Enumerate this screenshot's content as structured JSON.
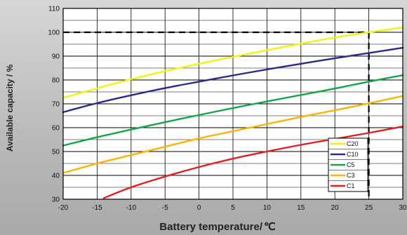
{
  "chart_data": {
    "type": "line",
    "xlabel": "Battery temperature/",
    "xlabel_unit": "℃",
    "ylabel": "Available capacity / %",
    "xlim": [
      -20,
      30
    ],
    "ylim": [
      30,
      110
    ],
    "x_ticks": [
      "-20",
      "-15",
      "-10",
      "-5",
      "0",
      "5",
      "10",
      "15",
      "20",
      "25",
      "30"
    ],
    "y_ticks": [
      "30",
      "40",
      "50",
      "60",
      "70",
      "80",
      "90",
      "100",
      "110"
    ],
    "grid": true,
    "legend_position": "bottom-right",
    "reference_lines": [
      {
        "axis": "y",
        "value": 100,
        "style": "dashed"
      },
      {
        "axis": "x",
        "value": 25,
        "style": "dashed"
      }
    ],
    "series": [
      {
        "name": "C20",
        "color": "#f2f20a",
        "x": [
          -20,
          -15,
          -10,
          -5,
          0,
          5,
          10,
          15,
          20,
          25,
          30
        ],
        "y": [
          72.5,
          76.5,
          80.3,
          83.7,
          86.8,
          89.7,
          92.5,
          95.2,
          97.8,
          100,
          102
        ]
      },
      {
        "name": "C10",
        "color": "#2a2a8c",
        "x": [
          -20,
          -15,
          -10,
          -5,
          0,
          5,
          10,
          15,
          20,
          25,
          30
        ],
        "y": [
          66.5,
          70.3,
          73.6,
          76.6,
          79.3,
          81.9,
          84.4,
          86.8,
          89.1,
          91.3,
          93.5
        ]
      },
      {
        "name": "C5",
        "color": "#17a34a",
        "x": [
          -20,
          -15,
          -10,
          -5,
          0,
          5,
          10,
          15,
          20,
          25,
          30
        ],
        "y": [
          52.5,
          56,
          59.2,
          62.3,
          65.3,
          68.2,
          71,
          73.7,
          76.4,
          79.3,
          82
        ]
      },
      {
        "name": "C3",
        "color": "#ffb300",
        "x": [
          -20,
          -15,
          -10,
          -5,
          0,
          5,
          10,
          15,
          20,
          25,
          30
        ],
        "y": [
          41,
          45,
          48.5,
          52,
          55.5,
          58.5,
          61.5,
          64.5,
          67.3,
          70.2,
          73.3
        ]
      },
      {
        "name": "C1",
        "color": "#e02020",
        "x": [
          -14,
          -10,
          -5,
          0,
          5,
          10,
          15,
          20,
          25,
          30
        ],
        "y": [
          30.5,
          35,
          39.5,
          43.5,
          47,
          50,
          52.8,
          55.3,
          57.8,
          60.5
        ]
      }
    ]
  }
}
